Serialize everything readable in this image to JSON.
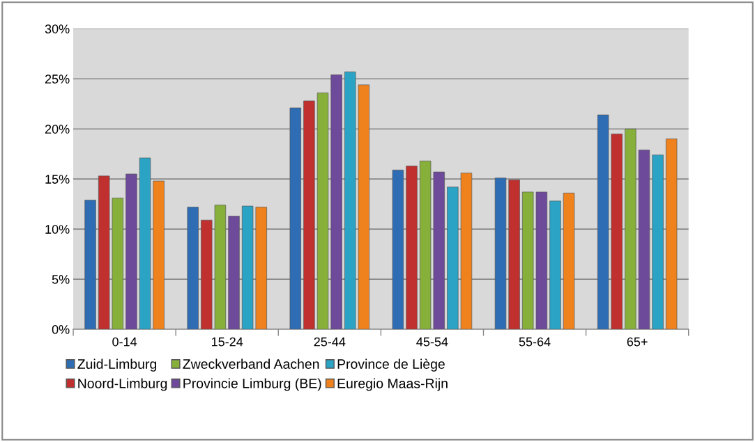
{
  "chart_data": {
    "type": "bar",
    "categories": [
      "0-14",
      "15-24",
      "25-44",
      "45-54",
      "55-64",
      "65+"
    ],
    "series": [
      {
        "name": "Zuid-Limburg",
        "color": "#2e6db4",
        "values": [
          12.9,
          12.2,
          22.1,
          15.9,
          15.1,
          21.4
        ]
      },
      {
        "name": "Noord-Limburg",
        "color": "#c0302f",
        "values": [
          15.3,
          10.9,
          22.8,
          16.3,
          14.9,
          19.5
        ]
      },
      {
        "name": "Zweckverband Aachen",
        "color": "#86b03a",
        "values": [
          13.1,
          12.4,
          23.6,
          16.8,
          13.7,
          20.0
        ]
      },
      {
        "name": "Provincie Limburg (BE)",
        "color": "#6e4a9a",
        "values": [
          15.5,
          11.3,
          25.4,
          15.7,
          13.7,
          17.9
        ]
      },
      {
        "name": "Province de Liège",
        "color": "#2aa3c4",
        "values": [
          17.1,
          12.3,
          25.7,
          14.2,
          12.8,
          17.4
        ]
      },
      {
        "name": "Euregio Maas-Rijn",
        "color": "#f0821e",
        "values": [
          14.8,
          12.2,
          24.4,
          15.6,
          13.6,
          19.0
        ]
      }
    ],
    "ylim": [
      0,
      30
    ],
    "yticks": [
      {
        "value": 0,
        "label": "0%"
      },
      {
        "value": 5,
        "label": "5%"
      },
      {
        "value": 10,
        "label": "10%"
      },
      {
        "value": 15,
        "label": "15%"
      },
      {
        "value": 20,
        "label": "20%"
      },
      {
        "value": 25,
        "label": "25%"
      },
      {
        "value": 30,
        "label": "30%"
      }
    ],
    "grid": "y",
    "legend": "bottom"
  }
}
